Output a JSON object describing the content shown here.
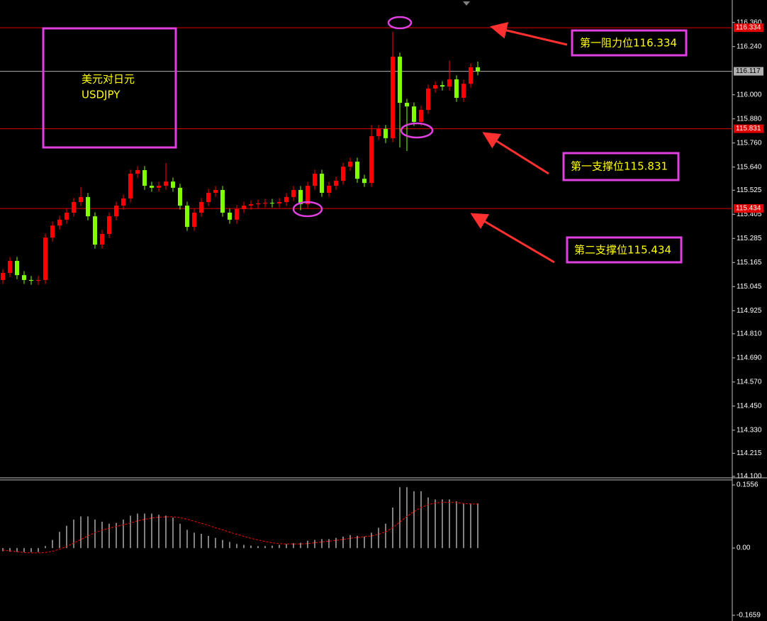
{
  "chart_data": [
    {
      "type": "candlestick",
      "title": "美元对日元",
      "subtitle": "USDJPY",
      "up_color": "#ff0000",
      "down_color": "#7fff00",
      "ylim": [
        114.1,
        116.472
      ],
      "yticks": [
        {
          "value": 116.36,
          "label": "116.360"
        },
        {
          "value": 116.24,
          "label": "116.240"
        },
        {
          "value": 116.0,
          "label": "116.000"
        },
        {
          "value": 115.88,
          "label": "115.880"
        },
        {
          "value": 115.76,
          "label": "115.760"
        },
        {
          "value": 115.64,
          "label": "115.640"
        },
        115.525,
        115.405,
        115.285,
        115.165,
        115.045,
        114.925,
        {
          "value": 114.81,
          "label": "114.810"
        },
        {
          "value": 114.69,
          "label": "114.690"
        },
        {
          "value": 114.57,
          "label": "114.570"
        },
        {
          "value": 114.45,
          "label": "114.450"
        },
        {
          "value": 114.33,
          "label": "114.330"
        },
        114.215,
        {
          "value": 114.1,
          "label": "114.100"
        }
      ],
      "hlines": [
        {
          "value": 116.334,
          "color": "#e00000",
          "text_color": "#ffffff"
        },
        {
          "value": 116.117,
          "color": "#b0b0b0",
          "text_color": "#000000"
        },
        {
          "value": 115.831,
          "color": "#e00000",
          "text_color": "#ffffff"
        },
        {
          "value": 115.434,
          "color": "#e00000",
          "text_color": "#ffffff"
        }
      ],
      "annotations": [
        "第一阻力位116.334",
        "第一支撑位115.831",
        "第二支撑位115.434"
      ],
      "ohlc": [
        [
          115.078,
          115.133,
          115.058,
          115.113
        ],
        [
          115.113,
          115.193,
          115.093,
          115.173
        ],
        [
          115.173,
          115.193,
          115.082,
          115.102
        ],
        [
          115.102,
          115.122,
          115.058,
          115.078
        ],
        [
          115.078,
          115.098,
          115.054,
          115.074
        ],
        [
          115.074,
          115.098,
          115.054,
          115.078
        ],
        [
          115.078,
          115.309,
          115.058,
          115.289
        ],
        [
          115.289,
          115.369,
          115.269,
          115.349
        ],
        [
          115.349,
          115.398,
          115.329,
          115.378
        ],
        [
          115.378,
          115.433,
          115.358,
          115.413
        ],
        [
          115.413,
          115.486,
          115.393,
          115.466
        ],
        [
          115.466,
          115.541,
          115.446,
          115.491
        ],
        [
          115.491,
          115.511,
          115.375,
          115.395
        ],
        [
          115.395,
          115.415,
          115.234,
          115.254
        ],
        [
          115.254,
          115.327,
          115.234,
          115.307
        ],
        [
          115.307,
          115.415,
          115.287,
          115.395
        ],
        [
          115.395,
          115.468,
          115.375,
          115.448
        ],
        [
          115.448,
          115.504,
          115.428,
          115.484
        ],
        [
          115.484,
          115.627,
          115.464,
          115.607
        ],
        [
          115.607,
          115.645,
          115.587,
          115.625
        ],
        [
          115.625,
          115.645,
          115.527,
          115.547
        ],
        [
          115.547,
          115.567,
          115.517,
          115.537
        ],
        [
          115.537,
          115.567,
          115.517,
          115.547
        ],
        [
          115.547,
          115.66,
          115.527,
          115.568
        ],
        [
          115.568,
          115.588,
          115.517,
          115.537
        ],
        [
          115.537,
          115.557,
          115.428,
          115.448
        ],
        [
          115.448,
          115.468,
          115.322,
          115.342
        ],
        [
          115.342,
          115.433,
          115.322,
          115.413
        ],
        [
          115.413,
          115.486,
          115.393,
          115.466
        ],
        [
          115.466,
          115.532,
          115.446,
          115.512
        ],
        [
          115.512,
          115.546,
          115.492,
          115.526
        ],
        [
          115.526,
          115.546,
          115.393,
          115.413
        ],
        [
          115.413,
          115.433,
          115.358,
          115.378
        ],
        [
          115.378,
          115.451,
          115.358,
          115.431
        ],
        [
          115.431,
          115.468,
          115.411,
          115.448
        ],
        [
          115.448,
          115.475,
          115.428,
          115.455
        ],
        [
          115.455,
          115.479,
          115.435,
          115.459
        ],
        [
          115.459,
          115.482,
          115.439,
          115.462
        ],
        [
          115.462,
          115.482,
          115.439,
          115.459
        ],
        [
          115.459,
          115.486,
          115.439,
          115.466
        ],
        [
          115.466,
          115.511,
          115.446,
          115.491
        ],
        [
          115.491,
          115.546,
          115.471,
          115.526
        ],
        [
          115.526,
          115.546,
          115.425,
          115.455
        ],
        [
          115.455,
          115.567,
          115.435,
          115.547
        ],
        [
          115.547,
          115.627,
          115.527,
          115.607
        ],
        [
          115.607,
          115.627,
          115.492,
          115.512
        ],
        [
          115.512,
          115.567,
          115.492,
          115.547
        ],
        [
          115.547,
          115.592,
          115.527,
          115.572
        ],
        [
          115.572,
          115.662,
          115.552,
          115.642
        ],
        [
          115.642,
          115.687,
          115.622,
          115.667
        ],
        [
          115.667,
          115.687,
          115.562,
          115.582
        ],
        [
          115.582,
          115.602,
          115.541,
          115.561
        ],
        [
          115.561,
          115.85,
          115.541,
          115.794
        ],
        [
          115.794,
          115.85,
          115.774,
          115.83
        ],
        [
          115.83,
          115.85,
          115.76,
          115.784
        ],
        [
          115.784,
          116.313,
          115.764,
          116.19
        ],
        [
          116.19,
          116.21,
          115.738,
          115.96
        ],
        [
          115.96,
          115.98,
          115.72,
          115.942
        ],
        [
          115.942,
          115.962,
          115.845,
          115.865
        ],
        [
          115.865,
          115.945,
          115.845,
          115.925
        ],
        [
          115.925,
          116.051,
          115.905,
          116.031
        ],
        [
          116.031,
          116.068,
          116.011,
          116.048
        ],
        [
          116.048,
          116.068,
          116.021,
          116.041
        ],
        [
          116.041,
          116.17,
          116.021,
          116.077
        ],
        [
          116.077,
          116.097,
          115.965,
          115.985
        ],
        [
          115.985,
          116.075,
          115.965,
          116.055
        ],
        [
          116.055,
          116.157,
          116.035,
          116.137
        ],
        [
          116.137,
          116.165,
          116.097,
          116.117
        ]
      ]
    },
    {
      "type": "macd",
      "ylim": [
        -0.18,
        0.168
      ],
      "yticks": [
        0.1556,
        {
          "value": 0,
          "label": "0.00"
        },
        -0.1659
      ],
      "histogram": {
        "color": "#ffffff",
        "values": [
          -0.008,
          -0.009,
          -0.01,
          -0.01,
          -0.01,
          -0.01,
          0.005,
          0.02,
          0.04,
          0.055,
          0.07,
          0.078,
          0.078,
          0.07,
          0.065,
          0.06,
          0.062,
          0.07,
          0.08,
          0.085,
          0.085,
          0.085,
          0.082,
          0.08,
          0.075,
          0.06,
          0.045,
          0.038,
          0.035,
          0.03,
          0.025,
          0.02,
          0.015,
          0.01,
          0.008,
          0.006,
          0.005,
          0.005,
          0.006,
          0.008,
          0.01,
          0.012,
          0.013,
          0.018,
          0.02,
          0.022,
          0.022,
          0.025,
          0.028,
          0.032,
          0.03,
          0.028,
          0.038,
          0.05,
          0.06,
          0.1,
          0.15,
          0.15,
          0.14,
          0.14,
          0.125,
          0.12,
          0.12,
          0.12,
          0.115,
          0.11,
          0.11,
          0.11
        ]
      },
      "signal": {
        "color": "#ff0000",
        "values": [
          -0.005,
          -0.007,
          -0.009,
          -0.011,
          -0.012,
          -0.012,
          -0.011,
          -0.008,
          -0.003,
          0.004,
          0.012,
          0.021,
          0.03,
          0.038,
          0.044,
          0.049,
          0.053,
          0.057,
          0.062,
          0.067,
          0.071,
          0.074,
          0.076,
          0.077,
          0.077,
          0.075,
          0.071,
          0.066,
          0.061,
          0.056,
          0.05,
          0.045,
          0.039,
          0.034,
          0.029,
          0.024,
          0.02,
          0.016,
          0.013,
          0.011,
          0.01,
          0.01,
          0.01,
          0.011,
          0.013,
          0.015,
          0.017,
          0.019,
          0.021,
          0.024,
          0.026,
          0.028,
          0.03,
          0.034,
          0.04,
          0.05,
          0.064,
          0.078,
          0.09,
          0.1,
          0.107,
          0.111,
          0.113,
          0.113,
          0.112,
          0.11,
          0.109,
          0.108
        ]
      }
    }
  ]
}
